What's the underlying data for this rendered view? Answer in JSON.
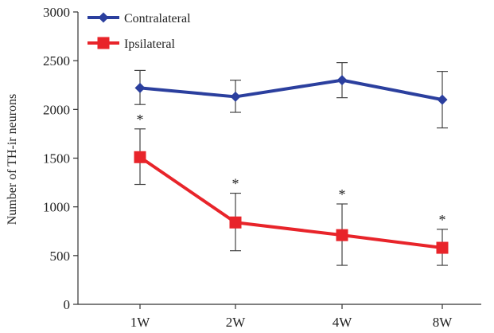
{
  "chart_data": {
    "type": "line",
    "title": "",
    "xlabel": "",
    "ylabel": "Number of TH-ir neurons",
    "categories": [
      "1W",
      "2W",
      "4W",
      "8W"
    ],
    "ylim": [
      0,
      3000
    ],
    "yticks": [
      0,
      500,
      1000,
      1500,
      2000,
      2500,
      3000
    ],
    "grid": false,
    "legend_position": "top-left",
    "series": [
      {
        "name": "Contralateral",
        "color": "#2b3f9e",
        "marker": "diamond",
        "values": [
          2220,
          2130,
          2300,
          2100
        ],
        "error": [
          [
            2050,
            2400
          ],
          [
            1970,
            2300
          ],
          [
            2120,
            2480
          ],
          [
            1810,
            2390
          ]
        ],
        "annotations": [
          "",
          "",
          "",
          ""
        ]
      },
      {
        "name": "Ipsilateral",
        "color": "#e8242a",
        "marker": "square",
        "values": [
          1510,
          840,
          710,
          580
        ],
        "error": [
          [
            1230,
            1800
          ],
          [
            550,
            1140
          ],
          [
            400,
            1030
          ],
          [
            400,
            770
          ]
        ],
        "annotations": [
          "*",
          "*",
          "*",
          "*"
        ]
      }
    ]
  }
}
